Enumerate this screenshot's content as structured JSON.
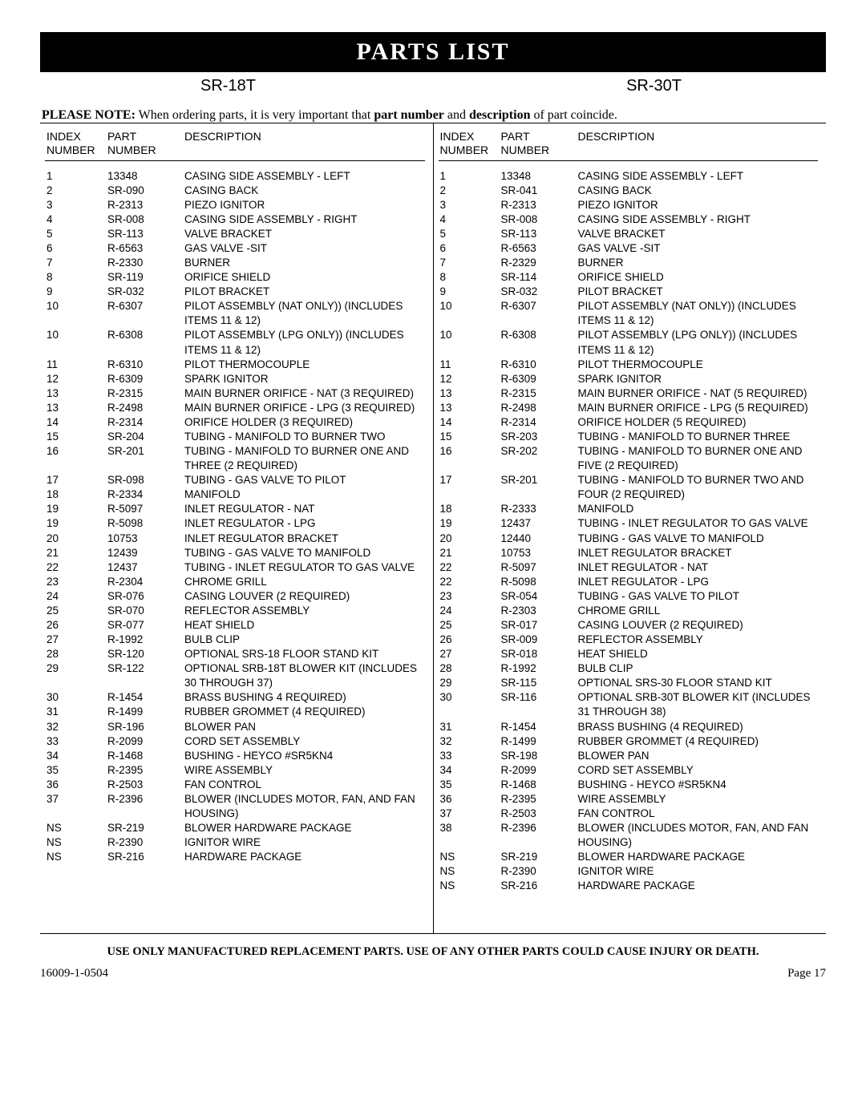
{
  "title": "PARTS LIST",
  "model_left": "SR-18T",
  "model_right": "SR-30T",
  "note_prefix_bold": "PLEASE NOTE:",
  "note_mid1": " When ordering parts, it is very important that ",
  "note_bold2": "part number",
  "note_mid2": " and ",
  "note_bold3": "description",
  "note_mid3": " of part coincide.",
  "head_index": "INDEX NUMBER",
  "head_part": "PART NUMBER",
  "head_desc": "DESCRIPTION",
  "warning": "USE ONLY MANUFACTURED REPLACEMENT PARTS. USE OF ANY OTHER PARTS COULD CAUSE INJURY OR DEATH.",
  "foot_left": "16009-1-0504",
  "foot_right": "Page 17",
  "left": [
    {
      "idx": "1",
      "part": "13348",
      "desc": "CASING SIDE ASSEMBLY - LEFT"
    },
    {
      "idx": "2",
      "part": "SR-090",
      "desc": "CASING BACK"
    },
    {
      "idx": "3",
      "part": "R-2313",
      "desc": "PIEZO IGNITOR"
    },
    {
      "idx": "4",
      "part": "SR-008",
      "desc": "CASING SIDE ASSEMBLY - RIGHT"
    },
    {
      "idx": "5",
      "part": "SR-113",
      "desc": "VALVE BRACKET"
    },
    {
      "idx": "6",
      "part": "R-6563",
      "desc": "GAS VALVE -SIT"
    },
    {
      "idx": "7",
      "part": "R-2330",
      "desc": "BURNER"
    },
    {
      "idx": "8",
      "part": "SR-119",
      "desc": "ORIFICE SHIELD"
    },
    {
      "idx": "9",
      "part": "SR-032",
      "desc": "PILOT BRACKET"
    },
    {
      "idx": "10",
      "part": "R-6307",
      "desc": "PILOT ASSEMBLY (NAT ONLY)) (INCLUDES ITEMS 11 & 12)"
    },
    {
      "idx": "10",
      "part": "R-6308",
      "desc": "PILOT ASSEMBLY (LPG ONLY)) (INCLUDES ITEMS 11 & 12)"
    },
    {
      "idx": "11",
      "part": "R-6310",
      "desc": "PILOT THERMOCOUPLE"
    },
    {
      "idx": "12",
      "part": "R-6309",
      "desc": "SPARK IGNITOR"
    },
    {
      "idx": "13",
      "part": "R-2315",
      "desc": "MAIN BURNER ORIFICE - NAT (3 REQUIRED)"
    },
    {
      "idx": "13",
      "part": "R-2498",
      "desc": "MAIN BURNER ORIFICE - LPG (3 REQUIRED)"
    },
    {
      "idx": "14",
      "part": "R-2314",
      "desc": "ORIFICE HOLDER (3 REQUIRED)"
    },
    {
      "idx": "15",
      "part": "SR-204",
      "desc": "TUBING - MANIFOLD TO BURNER TWO"
    },
    {
      "idx": "16",
      "part": "SR-201",
      "desc": "TUBING - MANIFOLD TO BURNER ONE AND THREE (2 REQUIRED)"
    },
    {
      "idx": "17",
      "part": "SR-098",
      "desc": "TUBING - GAS VALVE TO PILOT"
    },
    {
      "idx": "18",
      "part": "R-2334",
      "desc": "MANIFOLD"
    },
    {
      "idx": "19",
      "part": "R-5097",
      "desc": "INLET REGULATOR - NAT"
    },
    {
      "idx": "19",
      "part": "R-5098",
      "desc": "INLET REGULATOR - LPG"
    },
    {
      "idx": "20",
      "part": "10753",
      "desc": "INLET REGULATOR BRACKET"
    },
    {
      "idx": "21",
      "part": "12439",
      "desc": "TUBING - GAS VALVE TO MANIFOLD"
    },
    {
      "idx": "22",
      "part": "12437",
      "desc": "TUBING - INLET REGULATOR TO GAS VALVE"
    },
    {
      "idx": "23",
      "part": "R-2304",
      "desc": "CHROME GRILL"
    },
    {
      "idx": "24",
      "part": "SR-076",
      "desc": "CASING LOUVER (2 REQUIRED)"
    },
    {
      "idx": "25",
      "part": "SR-070",
      "desc": "REFLECTOR ASSEMBLY"
    },
    {
      "idx": "26",
      "part": "SR-077",
      "desc": "HEAT SHIELD"
    },
    {
      "idx": "27",
      "part": "R-1992",
      "desc": "BULB CLIP"
    },
    {
      "idx": "28",
      "part": "SR-120",
      "desc": "OPTIONAL SRS-18 FLOOR STAND KIT"
    },
    {
      "idx": "29",
      "part": "SR-122",
      "desc": "OPTIONAL SRB-18T BLOWER KIT (INCLUDES 30 THROUGH 37)"
    },
    {
      "idx": "30",
      "part": "R-1454",
      "desc": "BRASS BUSHING  4 REQUIRED)"
    },
    {
      "idx": "31",
      "part": "R-1499",
      "desc": "RUBBER GROMMET (4 REQUIRED)"
    },
    {
      "idx": "32",
      "part": "SR-196",
      "desc": "BLOWER PAN"
    },
    {
      "idx": "33",
      "part": "R-2099",
      "desc": "CORD SET ASSEMBLY"
    },
    {
      "idx": "34",
      "part": "R-1468",
      "desc": "BUSHING - HEYCO #SR5KN4"
    },
    {
      "idx": "35",
      "part": "R-2395",
      "desc": "WIRE ASSEMBLY"
    },
    {
      "idx": "36",
      "part": "R-2503",
      "desc": "FAN CONTROL"
    },
    {
      "idx": "37",
      "part": "R-2396",
      "desc": "BLOWER (INCLUDES MOTOR, FAN, AND FAN HOUSING)"
    },
    {
      "idx": "NS",
      "part": "SR-219",
      "desc": "BLOWER HARDWARE PACKAGE"
    },
    {
      "idx": "NS",
      "part": "R-2390",
      "desc": "IGNITOR WIRE"
    },
    {
      "idx": "NS",
      "part": "SR-216",
      "desc": "HARDWARE PACKAGE"
    }
  ],
  "right": [
    {
      "idx": "1",
      "part": "13348",
      "desc": "CASING SIDE ASSEMBLY - LEFT"
    },
    {
      "idx": "2",
      "part": "SR-041",
      "desc": "CASING BACK"
    },
    {
      "idx": "3",
      "part": "R-2313",
      "desc": "PIEZO IGNITOR"
    },
    {
      "idx": "4",
      "part": "SR-008",
      "desc": "CASING SIDE ASSEMBLY - RIGHT"
    },
    {
      "idx": "5",
      "part": "SR-113",
      "desc": "VALVE BRACKET"
    },
    {
      "idx": "6",
      "part": "R-6563",
      "desc": "GAS VALVE -SIT"
    },
    {
      "idx": "7",
      "part": "R-2329",
      "desc": "BURNER"
    },
    {
      "idx": "8",
      "part": "SR-114",
      "desc": "ORIFICE SHIELD"
    },
    {
      "idx": "9",
      "part": "SR-032",
      "desc": "PILOT BRACKET"
    },
    {
      "idx": "10",
      "part": "R-6307",
      "desc": "PILOT ASSEMBLY (NAT ONLY)) (INCLUDES ITEMS 11 & 12)"
    },
    {
      "idx": "10",
      "part": "R-6308",
      "desc": "PILOT ASSEMBLY (LPG ONLY)) (INCLUDES ITEMS 11 & 12)"
    },
    {
      "idx": "11",
      "part": "R-6310",
      "desc": "PILOT THERMOCOUPLE"
    },
    {
      "idx": "12",
      "part": "R-6309",
      "desc": "SPARK IGNITOR"
    },
    {
      "idx": "13",
      "part": "R-2315",
      "desc": "MAIN BURNER ORIFICE - NAT (5 REQUIRED)"
    },
    {
      "idx": "13",
      "part": "R-2498",
      "desc": "MAIN BURNER ORIFICE - LPG (5 REQUIRED)"
    },
    {
      "idx": "14",
      "part": "R-2314",
      "desc": "ORIFICE HOLDER (5 REQUIRED)"
    },
    {
      "idx": "15",
      "part": "SR-203",
      "desc": "TUBING - MANIFOLD TO BURNER THREE"
    },
    {
      "idx": "16",
      "part": "SR-202",
      "desc": "TUBING - MANIFOLD TO BURNER ONE AND FIVE (2 REQUIRED)"
    },
    {
      "idx": "17",
      "part": "SR-201",
      "desc": "TUBING - MANIFOLD TO BURNER TWO AND FOUR (2 REQUIRED)"
    },
    {
      "idx": "18",
      "part": "R-2333",
      "desc": "MANIFOLD"
    },
    {
      "idx": "19",
      "part": "12437",
      "desc": "TUBING - INLET REGULATOR TO GAS VALVE"
    },
    {
      "idx": "20",
      "part": "12440",
      "desc": "TUBING - GAS VALVE TO MANIFOLD"
    },
    {
      "idx": "21",
      "part": "10753",
      "desc": "INLET REGULATOR BRACKET"
    },
    {
      "idx": "22",
      "part": "R-5097",
      "desc": "INLET REGULATOR - NAT"
    },
    {
      "idx": "22",
      "part": "R-5098",
      "desc": "INLET REGULATOR - LPG"
    },
    {
      "idx": "23",
      "part": "SR-054",
      "desc": "TUBING - GAS VALVE TO PILOT"
    },
    {
      "idx": "24",
      "part": "R-2303",
      "desc": "CHROME GRILL"
    },
    {
      "idx": "25",
      "part": "SR-017",
      "desc": "CASING LOUVER (2 REQUIRED)"
    },
    {
      "idx": "26",
      "part": "SR-009",
      "desc": "REFLECTOR ASSEMBLY"
    },
    {
      "idx": "27",
      "part": "SR-018",
      "desc": "HEAT SHIELD"
    },
    {
      "idx": "28",
      "part": "R-1992",
      "desc": "BULB CLIP"
    },
    {
      "idx": "29",
      "part": "SR-115",
      "desc": "OPTIONAL SRS-30 FLOOR STAND KIT"
    },
    {
      "idx": "30",
      "part": "SR-116",
      "desc": "OPTIONAL SRB-30T BLOWER KIT (INCLUDES 31 THROUGH 38)"
    },
    {
      "idx": "31",
      "part": "R-1454",
      "desc": "BRASS BUSHING  (4 REQUIRED)"
    },
    {
      "idx": "32",
      "part": "R-1499",
      "desc": "RUBBER GROMMET (4 REQUIRED)"
    },
    {
      "idx": "33",
      "part": "SR-198",
      "desc": "BLOWER PAN"
    },
    {
      "idx": "34",
      "part": "R-2099",
      "desc": "CORD SET ASSEMBLY"
    },
    {
      "idx": "35",
      "part": "R-1468",
      "desc": "BUSHING - HEYCO #SR5KN4"
    },
    {
      "idx": "36",
      "part": "R-2395",
      "desc": "WIRE ASSEMBLY"
    },
    {
      "idx": "37",
      "part": "R-2503",
      "desc": "FAN CONTROL"
    },
    {
      "idx": "38",
      "part": "R-2396",
      "desc": "BLOWER (INCLUDES MOTOR, FAN, AND FAN HOUSING)"
    },
    {
      "idx": "NS",
      "part": "SR-219",
      "desc": "BLOWER HARDWARE PACKAGE"
    },
    {
      "idx": "NS",
      "part": "R-2390",
      "desc": "IGNITOR WIRE"
    },
    {
      "idx": "NS",
      "part": "SR-216",
      "desc": "HARDWARE PACKAGE"
    }
  ]
}
